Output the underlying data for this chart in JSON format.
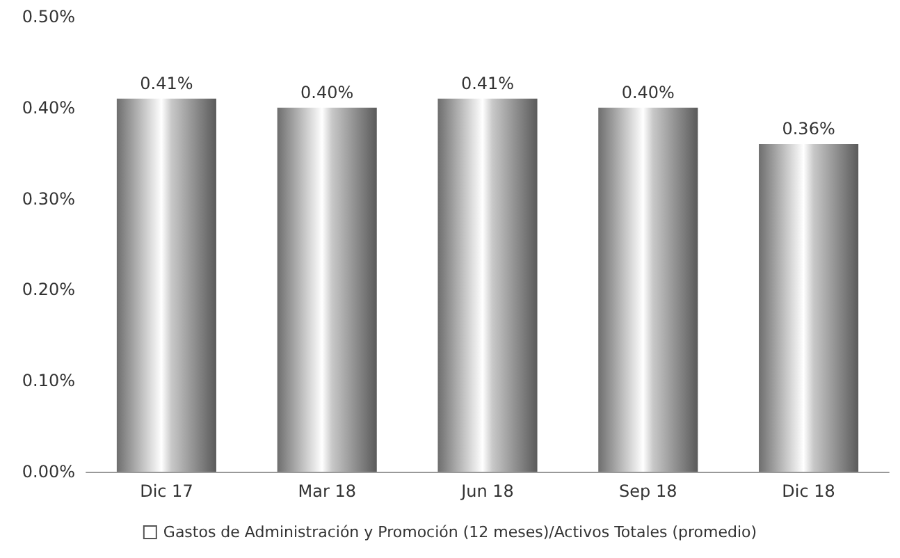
{
  "chart_data": {
    "type": "bar",
    "categories": [
      "Dic 17",
      "Mar 18",
      "Jun 18",
      "Sep 18",
      "Dic 18"
    ],
    "series": [
      {
        "name": "Gastos de Administración y Promoción (12 meses)/Activos Totales (promedio)",
        "color": "#c8c8c8",
        "values": [
          0.41,
          0.4,
          0.41,
          0.4,
          0.36
        ],
        "value_labels": [
          "0.41%",
          "0.40%",
          "0.41%",
          "0.40%",
          "0.36%"
        ]
      }
    ],
    "ylim": [
      0,
      0.5
    ],
    "yticks": [
      {
        "value": 0,
        "label": "0.00%"
      },
      {
        "value": 0.1,
        "label": "0.10%"
      },
      {
        "value": 0.2,
        "label": "0.20%"
      },
      {
        "value": 0.3,
        "label": "0.30%"
      },
      {
        "value": 0.4,
        "label": "0.40%"
      },
      {
        "value": 0.5,
        "label": "0.50%"
      }
    ],
    "grid": false,
    "legend": "bottom"
  }
}
